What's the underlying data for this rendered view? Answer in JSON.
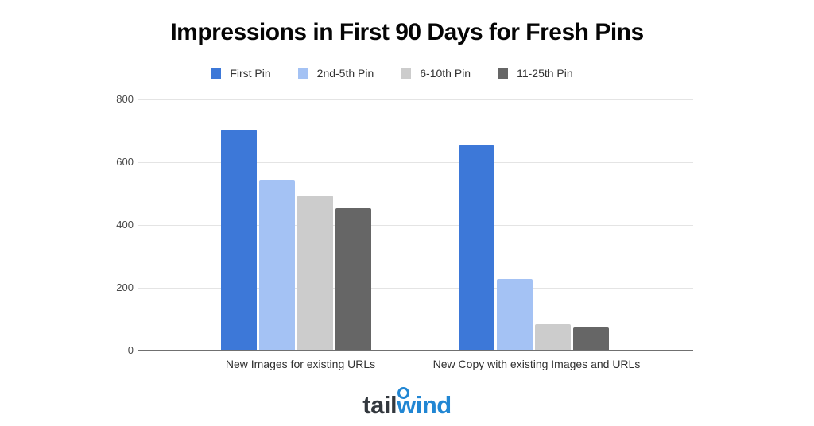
{
  "title": "Impressions in First 90 Days for Fresh Pins",
  "legend": {
    "items": [
      {
        "label": "First Pin",
        "color": "#3D78D8"
      },
      {
        "label": "2nd-5th Pin",
        "color": "#A4C2F4"
      },
      {
        "label": "6-10th Pin",
        "color": "#CCCCCC"
      },
      {
        "label": "11-25th Pin",
        "color": "#666666"
      }
    ]
  },
  "chart_data": {
    "type": "bar",
    "title": "Impressions in First 90 Days for Fresh Pins",
    "categories": [
      "New Images for existing URLs",
      "New Copy with existing Images and URLs"
    ],
    "series": [
      {
        "name": "First Pin",
        "color": "#3D78D8",
        "values": [
          700,
          650
        ]
      },
      {
        "name": "2nd-5th Pin",
        "color": "#A4C2F4",
        "values": [
          540,
          225
        ]
      },
      {
        "name": "6-10th Pin",
        "color": "#CCCCCC",
        "values": [
          490,
          80
        ]
      },
      {
        "name": "11-25th Pin",
        "color": "#666666",
        "values": [
          450,
          70
        ]
      }
    ],
    "xlabel": "",
    "ylabel": "",
    "ylim": [
      0,
      800
    ],
    "yticks": [
      0,
      200,
      400,
      600,
      800
    ],
    "grid": true,
    "legend_position": "top",
    "colors": {
      "gridline": "#e4e4e4",
      "baseline": "#707070",
      "tick_text": "#484848",
      "category_text": "#2f2f2f"
    }
  },
  "logo": {
    "part1": "tail",
    "part2": "wind",
    "color_part1": "#33383e",
    "color_part2": "#2186d3"
  }
}
